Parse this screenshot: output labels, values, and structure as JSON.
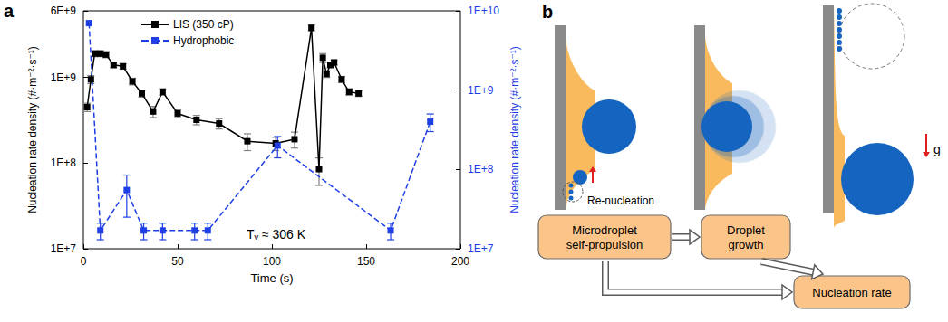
{
  "chart_data": {
    "type": "line",
    "panel": "a",
    "xlabel": "Time (s)",
    "ylabel": "Nucleation rate density (#·m⁻²·s⁻¹)",
    "y2label": "Nucleation rate density (#·m⁻²·s⁻¹)",
    "xlim": [
      0,
      200
    ],
    "xticks": [
      0,
      50,
      100,
      150,
      200
    ],
    "ylim": [
      10000000.0,
      6000000000.0
    ],
    "yticks": [
      {
        "value": 10000000.0,
        "label": "1E+7"
      },
      {
        "value": 100000000.0,
        "label": "1E+8"
      },
      {
        "value": 1000000000.0,
        "label": "1E+9"
      },
      {
        "value": 6000000000.0,
        "label": "6E+9"
      }
    ],
    "y2lim": [
      10000000.0,
      10000000000.0
    ],
    "y2ticks": [
      {
        "value": 10000000.0,
        "label": "1E+7"
      },
      {
        "value": 100000000.0,
        "label": "1E+8"
      },
      {
        "value": 1000000000.0,
        "label": "1E+9"
      },
      {
        "value": 10000000000.0,
        "label": "1E+10"
      }
    ],
    "log": "y",
    "grid": false,
    "legend": "upper left",
    "annotations": [
      "Tᵥ ≈ 306 K"
    ],
    "series": [
      {
        "name": "LIS (350 cP)",
        "color": "#000000",
        "marker": "square",
        "line_style": "solid",
        "axis": "y",
        "x": [
          2,
          4,
          6,
          9,
          12,
          16,
          21,
          26,
          31,
          37,
          42,
          50,
          60,
          72,
          87,
          102,
          112,
          121,
          125,
          127,
          129,
          131,
          133,
          137,
          141,
          146
        ],
        "values": [
          450000000.0,
          950000000.0,
          1900000000.0,
          1900000000.0,
          1850000000.0,
          1400000000.0,
          1350000000.0,
          900000000.0,
          650000000.0,
          400000000.0,
          680000000.0,
          380000000.0,
          320000000.0,
          290000000.0,
          180000000.0,
          170000000.0,
          190000000.0,
          3800000000.0,
          85000000.0,
          1700000000.0,
          1100000000.0,
          1400000000.0,
          1500000000.0,
          950000000.0,
          680000000.0,
          650000000.0
        ],
        "errors": [
          50000000.0,
          100000000.0,
          150000000.0,
          150000000.0,
          150000000.0,
          100000000.0,
          100000000.0,
          80000000.0,
          60000000.0,
          60000000.0,
          60000000.0,
          40000000.0,
          40000000.0,
          40000000.0,
          40000000.0,
          30000000.0,
          40000000.0,
          300000000.0,
          30000000.0,
          200000000.0,
          100000000.0,
          100000000.0,
          100000000.0,
          80000000.0,
          60000000.0,
          50000000.0
        ]
      },
      {
        "name": "Hydrophobic",
        "color": "#1e3ee6",
        "marker": "square",
        "line_style": "dashed",
        "axis": "y2",
        "x": [
          3,
          9,
          23,
          32,
          42,
          59,
          66,
          103,
          163,
          184
        ],
        "values": [
          7000000000.0,
          17000000.0,
          55000000.0,
          17000000.0,
          17000000.0,
          17000000.0,
          17000000.0,
          200000000.0,
          17000000.0,
          400000000.0
        ],
        "errors": [
          0,
          4000000.0,
          30000000.0,
          4000000.0,
          4000000.0,
          4000000.0,
          4000000.0,
          60000000.0,
          4000000.0,
          100000000.0
        ]
      }
    ]
  },
  "diagram": {
    "panel": "b",
    "texts": {
      "re_nucleation": "Re-nucleation",
      "gravity": "g"
    },
    "nodes": [
      {
        "label": "Microdroplet self-propulsion"
      },
      {
        "label": "Droplet growth"
      },
      {
        "label": "Nucleation rate"
      }
    ],
    "edges": [
      [
        0,
        1
      ],
      [
        1,
        2
      ],
      [
        0,
        2
      ]
    ]
  }
}
